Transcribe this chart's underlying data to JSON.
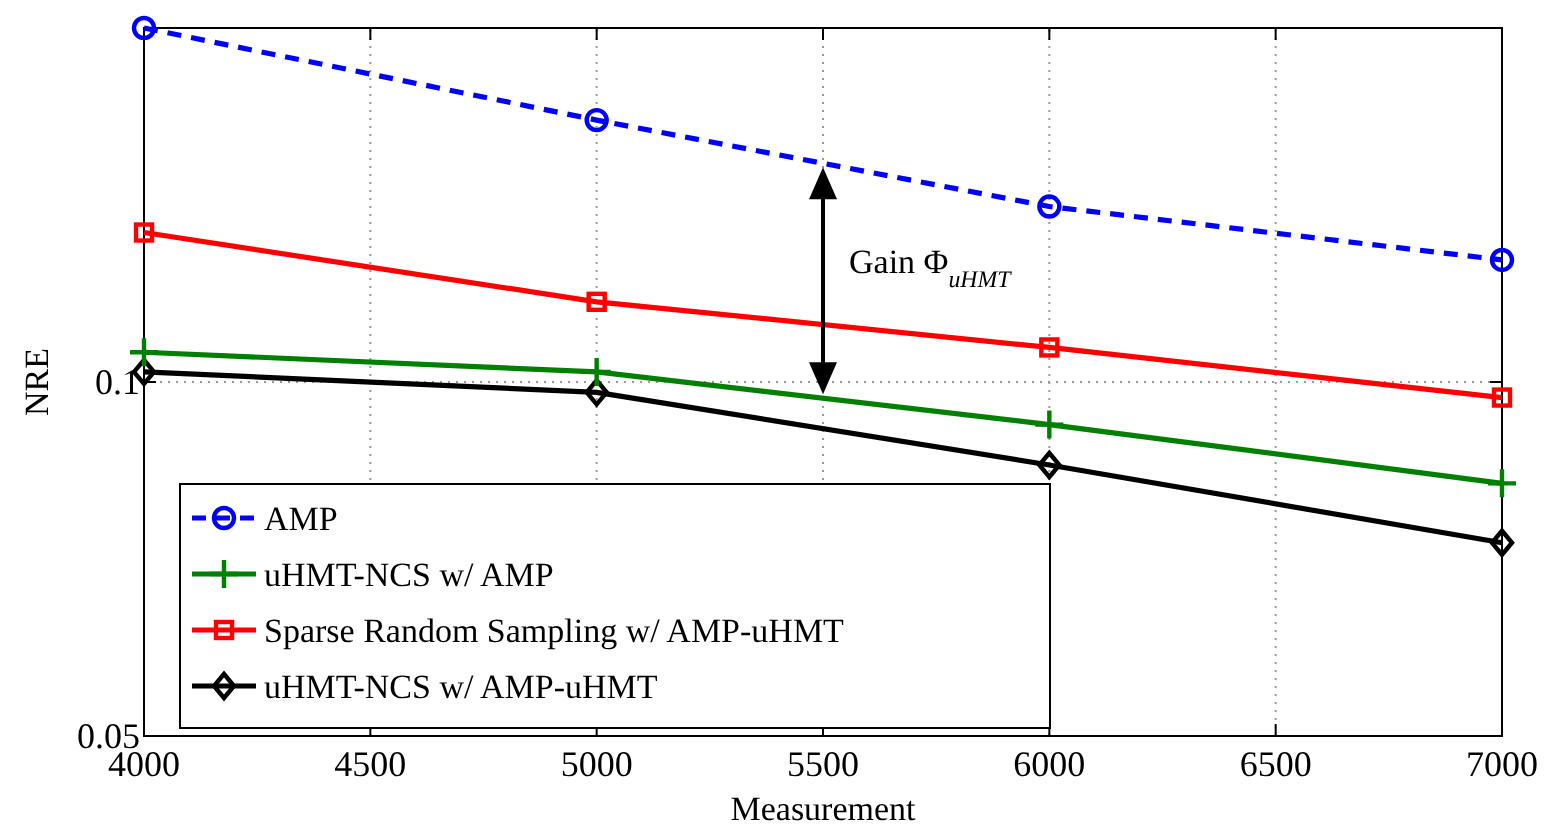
{
  "chart_data": {
    "type": "line",
    "xlabel": "Measurement",
    "ylabel": "NRE",
    "x": [
      4000,
      5000,
      6000,
      7000
    ],
    "xlim": [
      4000,
      7000
    ],
    "xticks": [
      4000,
      4500,
      5000,
      5500,
      6000,
      6500,
      7000
    ],
    "ylim": [
      0.05,
      0.2
    ],
    "yticks": [
      0.05,
      0.1
    ],
    "log": "y",
    "grid": true,
    "legend": "bottom left",
    "series": [
      {
        "name": "AMP",
        "color": "#0000ff",
        "marker": "circle",
        "line_style": "dashed",
        "values": [
          0.2,
          0.167,
          0.141,
          0.127
        ]
      },
      {
        "name": "uHMT-NCS w/ AMP",
        "color": "#008000",
        "marker": "cross",
        "line_style": "solid",
        "values": [
          0.106,
          0.102,
          0.092,
          0.082
        ]
      },
      {
        "name": "Sparse Random Sampling w/ AMP-uHMT",
        "color": "#ff0000",
        "marker": "square",
        "line_style": "solid",
        "values": [
          0.134,
          0.117,
          0.107,
          0.097
        ]
      },
      {
        "name": "uHMT-NCS w/ AMP-uHMT",
        "color": "#000000",
        "marker": "diamond",
        "line_style": "solid",
        "values": [
          0.102,
          0.098,
          0.085,
          0.073
        ]
      }
    ],
    "annotations": [
      "Gain Φ$_{uHMT}$"
    ]
  }
}
